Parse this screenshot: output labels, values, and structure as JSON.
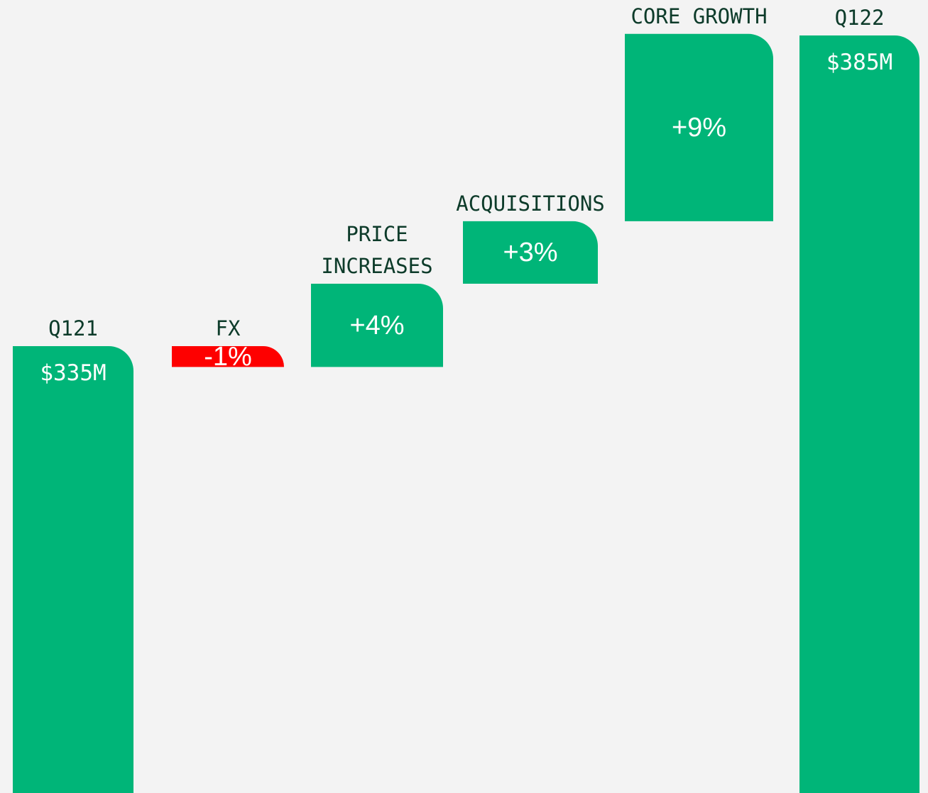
{
  "chart_data": {
    "type": "waterfall",
    "categories": [
      "Q121",
      "FX",
      "PRICE INCREASES",
      "ACQUISITIONS",
      "CORE GROWTH",
      "Q122"
    ],
    "values": [
      335,
      -1,
      4,
      3,
      9,
      385
    ],
    "value_labels": [
      "$335M",
      "-1%",
      "+4%",
      "+3%",
      "+9%",
      "$385M"
    ],
    "totals": [
      true,
      false,
      false,
      false,
      false,
      true
    ],
    "colors": [
      "#00b578",
      "#fe0000",
      "#00b578",
      "#00b578",
      "#00b578",
      "#00b578"
    ]
  }
}
